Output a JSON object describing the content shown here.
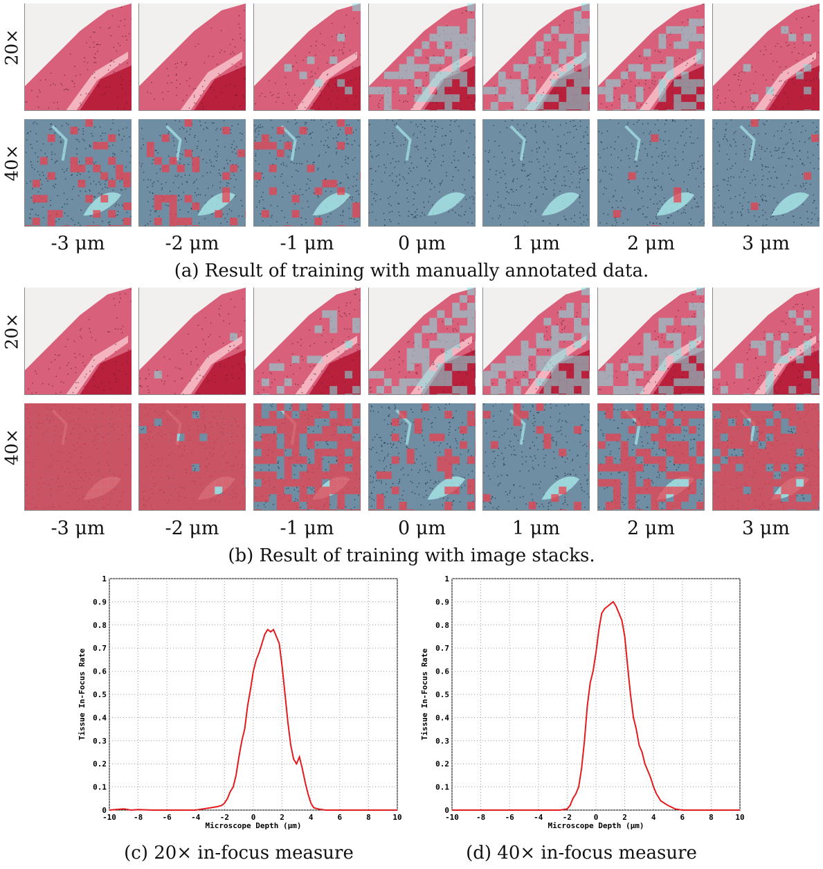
{
  "panels": [
    {
      "id": "a",
      "caption": "(a) Result of training with manually annotated data.",
      "rows": [
        {
          "label": "20×",
          "kind": "low",
          "infocus": [
            0,
            0,
            0.08,
            0.45,
            0.6,
            0.5,
            0.12
          ]
        },
        {
          "label": "40×",
          "kind": "high",
          "infocus": [
            0.8,
            0.85,
            0.9,
            0.99,
            1.0,
            0.98,
            0.97
          ]
        }
      ],
      "depths": [
        "-3 μm",
        "-2 μm",
        "-1 μm",
        "0 μm",
        "1 μm",
        "2 μm",
        "3 μm"
      ]
    },
    {
      "id": "b",
      "caption": "(b) Result of training with image stacks.",
      "rows": [
        {
          "label": "20×",
          "kind": "low",
          "infocus": [
            0,
            0.02,
            0.15,
            0.5,
            0.65,
            0.55,
            0.2
          ]
        },
        {
          "label": "40×",
          "kind": "high",
          "infocus": [
            0,
            0.03,
            0.3,
            0.85,
            0.9,
            0.55,
            0.2
          ]
        }
      ],
      "depths": [
        "-3 μm",
        "-2 μm",
        "-1 μm",
        "0 μm",
        "1 μm",
        "2 μm",
        "3 μm"
      ]
    }
  ],
  "colors": {
    "tissue_pink": "#d9607a",
    "tissue_dark": "#b8203c",
    "overlay_red": "#e8404f",
    "overlay_cyan": "#7fe6e6",
    "blue_tissue": "#6f8ea3",
    "curve_red": "#e31a1c"
  },
  "chart_data": [
    {
      "type": "line",
      "caption": "(c) 20× in-focus measure",
      "xlabel": "Microscope Depth (μm)",
      "ylabel": "Tissue In-Focus Rate",
      "xlim": [
        -10,
        10
      ],
      "ylim": [
        0,
        1
      ],
      "xticks": [
        "-10",
        "-8",
        "-6",
        "-4",
        "-2",
        "0",
        "2",
        "4",
        "6",
        "8",
        "10"
      ],
      "yticks": [
        "0",
        "0.1",
        "0.2",
        "0.3",
        "0.4",
        "0.5",
        "0.6",
        "0.7",
        "0.8",
        "0.9",
        "1"
      ],
      "grid": true,
      "series": [
        {
          "x": [
            -10,
            -9,
            -8.5,
            -8,
            -7,
            -6,
            -5,
            -4,
            -3.5,
            -3,
            -2.5,
            -2.2,
            -2,
            -1.8,
            -1.6,
            -1.4,
            -1.2,
            -1.0,
            -0.8,
            -0.6,
            -0.4,
            -0.2,
            0,
            0.2,
            0.4,
            0.6,
            0.8,
            1.0,
            1.2,
            1.4,
            1.6,
            1.8,
            2.0,
            2.2,
            2.4,
            2.6,
            2.8,
            3.0,
            3.2,
            3.4,
            3.6,
            3.8,
            4.0,
            4.2,
            4.5,
            5,
            6,
            7,
            8,
            9,
            10
          ],
          "y": [
            0,
            0.005,
            0,
            0.002,
            0,
            0,
            0,
            0,
            0.005,
            0.01,
            0.015,
            0.02,
            0.03,
            0.05,
            0.08,
            0.1,
            0.15,
            0.23,
            0.3,
            0.35,
            0.45,
            0.52,
            0.6,
            0.65,
            0.68,
            0.72,
            0.76,
            0.78,
            0.77,
            0.78,
            0.75,
            0.72,
            0.62,
            0.5,
            0.38,
            0.28,
            0.22,
            0.2,
            0.23,
            0.18,
            0.12,
            0.07,
            0.03,
            0.01,
            0.005,
            0,
            0,
            0,
            0,
            0,
            0
          ]
        }
      ]
    },
    {
      "type": "line",
      "caption": "(d) 40× in-focus measure",
      "xlabel": "Microscope Depth (μm)",
      "ylabel": "Tissue In-Focus Rate",
      "xlim": [
        -10,
        10
      ],
      "ylim": [
        0,
        1
      ],
      "xticks": [
        "-10",
        "-8",
        "-6",
        "-4",
        "-2",
        "0",
        "2",
        "4",
        "6",
        "8",
        "10"
      ],
      "yticks": [
        "0",
        "0.1",
        "0.2",
        "0.3",
        "0.4",
        "0.5",
        "0.6",
        "0.7",
        "0.8",
        "0.9",
        "1"
      ],
      "grid": true,
      "series": [
        {
          "x": [
            -10,
            -8,
            -6,
            -4,
            -3,
            -2.5,
            -2,
            -1.8,
            -1.6,
            -1.4,
            -1.2,
            -1.0,
            -0.8,
            -0.6,
            -0.4,
            -0.2,
            0,
            0.2,
            0.4,
            0.6,
            0.8,
            1.0,
            1.2,
            1.4,
            1.6,
            1.8,
            2.0,
            2.2,
            2.4,
            2.6,
            2.8,
            3.0,
            3.2,
            3.4,
            3.6,
            3.8,
            4.0,
            4.2,
            4.5,
            5,
            5.5,
            6,
            7,
            8,
            9,
            10
          ],
          "y": [
            0,
            0,
            0,
            0,
            0,
            0,
            0.005,
            0.02,
            0.05,
            0.07,
            0.1,
            0.18,
            0.3,
            0.45,
            0.55,
            0.6,
            0.68,
            0.78,
            0.85,
            0.87,
            0.88,
            0.89,
            0.9,
            0.88,
            0.85,
            0.82,
            0.75,
            0.62,
            0.5,
            0.4,
            0.35,
            0.28,
            0.25,
            0.2,
            0.17,
            0.14,
            0.1,
            0.07,
            0.04,
            0.02,
            0.005,
            0,
            0,
            0,
            0,
            0
          ]
        }
      ]
    }
  ]
}
